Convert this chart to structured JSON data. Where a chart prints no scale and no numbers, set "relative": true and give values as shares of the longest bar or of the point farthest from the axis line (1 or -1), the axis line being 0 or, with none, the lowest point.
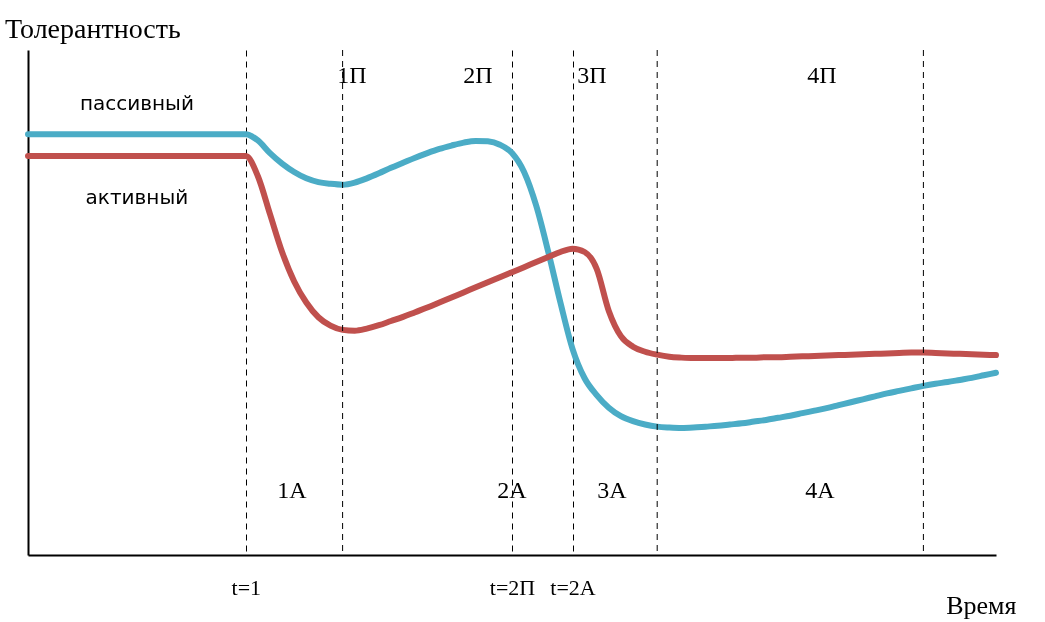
{
  "chart_data": {
    "type": "line",
    "title": "Толерантность",
    "xlabel": "Время",
    "relative": true,
    "grid": "x",
    "line_style": "solid",
    "marker": "none",
    "categories": [
      null,
      null,
      null,
      null,
      null,
      null,
      null,
      null,
      null,
      null,
      null,
      null,
      null,
      null,
      null,
      null,
      null,
      null,
      "t=1",
      null,
      null,
      null,
      null,
      null,
      null,
      null,
      null,
      null,
      null,
      null,
      null,
      null,
      null,
      null,
      null,
      null,
      null,
      null,
      null,
      null,
      "t=2П",
      null,
      null,
      null,
      null,
      "t=2А",
      null,
      null,
      null,
      null,
      null,
      null,
      null,
      null,
      null,
      null,
      null,
      null,
      null,
      null,
      null,
      null,
      null,
      null,
      null,
      null,
      null,
      null,
      null,
      null,
      null,
      null,
      null,
      null,
      null,
      null,
      null,
      null,
      null,
      null,
      null
    ],
    "series": [
      {
        "name": "пассивный",
        "color": "#4bacc6",
        "values": [
          1,
          1,
          1,
          1,
          1,
          1,
          1,
          1,
          1,
          1,
          1,
          1,
          1,
          1,
          1,
          1,
          1,
          1,
          1,
          0.985,
          0.955,
          0.93,
          0.91,
          0.895,
          0.886,
          0.882,
          0.88,
          0.885,
          0.895,
          0.907,
          0.92,
          0.932,
          0.944,
          0.955,
          0.965,
          0.973,
          0.98,
          0.984,
          0.983,
          0.975,
          0.955,
          0.91,
          0.83,
          0.72,
          0.6,
          0.49,
          0.42,
          0.38,
          0.35,
          0.33,
          0.318,
          0.31,
          0.305,
          0.303,
          0.302,
          0.303,
          0.305,
          0.307,
          0.31,
          0.313,
          0.317,
          0.321,
          0.326,
          0.331,
          0.337,
          0.343,
          0.349,
          0.356,
          0.363,
          0.37,
          0.377,
          0.384,
          0.39,
          0.396,
          0.402,
          0.407,
          0.411,
          0.416,
          0.421,
          0.427,
          0.433
        ]
      },
      {
        "name": "активный",
        "color": "#c0504d",
        "values": [
          0.948,
          0.948,
          0.948,
          0.948,
          0.948,
          0.948,
          0.948,
          0.948,
          0.948,
          0.948,
          0.948,
          0.948,
          0.948,
          0.948,
          0.948,
          0.948,
          0.948,
          0.948,
          0.948,
          0.9,
          0.81,
          0.72,
          0.65,
          0.6,
          0.565,
          0.545,
          0.535,
          0.533,
          0.538,
          0.546,
          0.556,
          0.566,
          0.577,
          0.588,
          0.6,
          0.612,
          0.624,
          0.636,
          0.648,
          0.66,
          0.672,
          0.684,
          0.696,
          0.708,
          0.72,
          0.728,
          0.72,
          0.68,
          0.58,
          0.52,
          0.495,
          0.483,
          0.476,
          0.471,
          0.469,
          0.468,
          0.468,
          0.468,
          0.468,
          0.469,
          0.469,
          0.47,
          0.47,
          0.471,
          0.472,
          0.473,
          0.474,
          0.475,
          0.476,
          0.477,
          0.478,
          0.479,
          0.48,
          0.481,
          0.481,
          0.48,
          0.479,
          0.478,
          0.477,
          0.476,
          0.475
        ]
      }
    ],
    "annotations": [
      "1П",
      "2П",
      "3П",
      "4П",
      "1А",
      "2А",
      "3А",
      "4А"
    ]
  }
}
